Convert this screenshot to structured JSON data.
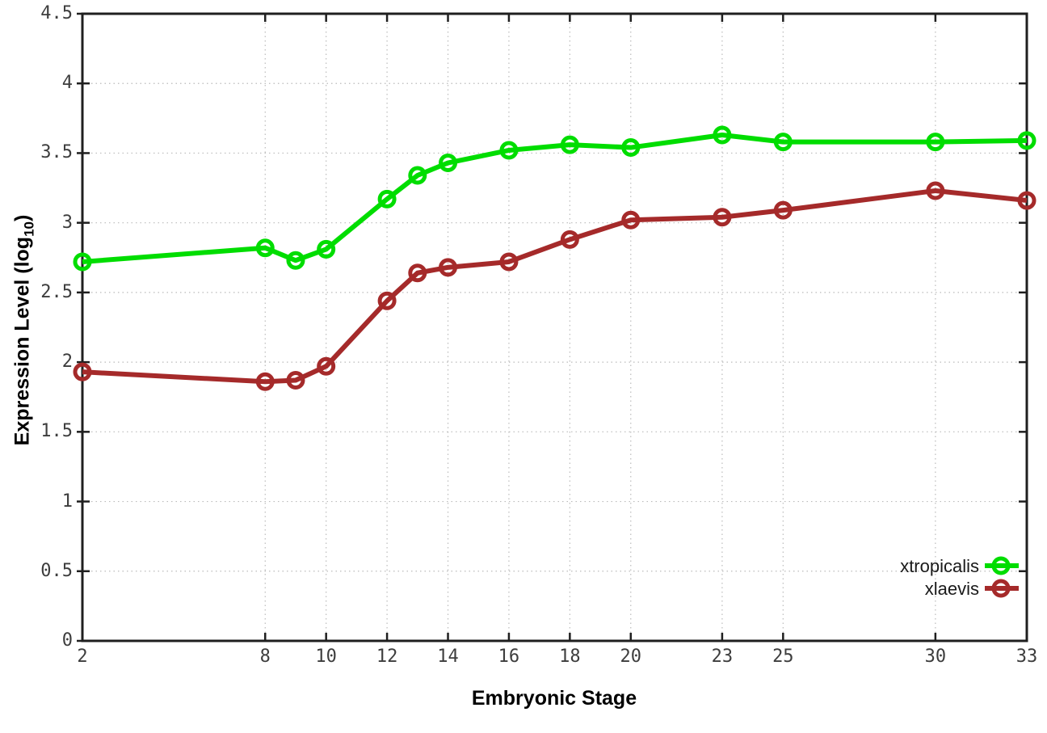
{
  "figure": {
    "xlabel": "Embryonic Stage",
    "ylabel_prefix": "Expression Level (log",
    "ylabel_sub": "10",
    "ylabel_suffix": ")"
  },
  "chart_data": {
    "type": "line",
    "xlabel": "Embryonic Stage",
    "ylabel": "Expression Level (log10)",
    "x": [
      2,
      8,
      9,
      10,
      12,
      13,
      14,
      16,
      18,
      20,
      23,
      25,
      30,
      33
    ],
    "series": [
      {
        "name": "xtropicalis",
        "color": "#00dd00",
        "marker": "open-circle",
        "values": [
          2.72,
          2.82,
          2.73,
          2.81,
          3.17,
          3.34,
          3.43,
          3.52,
          3.56,
          3.54,
          3.63,
          3.58,
          3.58,
          3.59
        ]
      },
      {
        "name": "xlaevis",
        "color": "#a52a2a",
        "marker": "open-circle",
        "values": [
          1.93,
          1.86,
          1.87,
          1.97,
          2.44,
          2.64,
          2.68,
          2.72,
          2.88,
          3.02,
          3.04,
          3.09,
          3.23,
          3.16
        ]
      }
    ],
    "xlim": [
      2,
      33
    ],
    "ylim": [
      0,
      4.5
    ],
    "x_ticks": [
      2,
      8,
      10,
      12,
      14,
      16,
      18,
      20,
      23,
      25,
      30,
      33
    ],
    "x_tick_labels": [
      "2",
      "8",
      "10",
      "12",
      "14",
      "16",
      "18",
      "20",
      "23",
      "25",
      "30",
      "33"
    ],
    "y_ticks": [
      0,
      0.5,
      1,
      1.5,
      2,
      2.5,
      3,
      3.5,
      4,
      4.5
    ],
    "y_tick_labels": [
      "0",
      "0.5",
      "1",
      "1.5",
      "2",
      "2.5",
      "3",
      "3.5",
      "4",
      "4.5"
    ],
    "grid": true,
    "legend_position": "inside-right-lower",
    "colors": {
      "background": "#ffffff",
      "border": "#1f1f1f",
      "grid": "#bbbbbb",
      "tick_text": "#3d3d3d",
      "title_text": "#000000"
    }
  }
}
